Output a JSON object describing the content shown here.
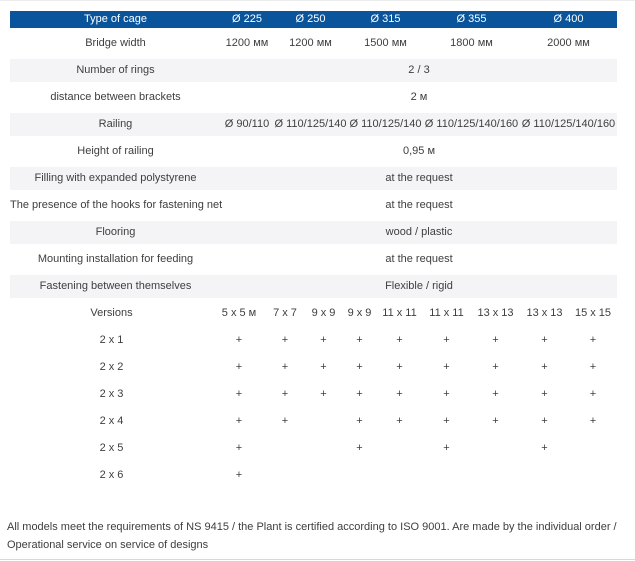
{
  "colors": {
    "header_bg": "#0a549b",
    "header_text": "#ffffff",
    "shade_bg": "#f4f4f6",
    "text": "#3e3e40",
    "divider": "#d8d8d8"
  },
  "table": {
    "header": {
      "label": "Type of cage",
      "values": [
        "Ø 225",
        "Ø 250",
        "Ø 315",
        "Ø 355",
        "Ø 400"
      ]
    },
    "rows": [
      {
        "kind": "cols5",
        "shade": false,
        "label": "Bridge width",
        "values": [
          "1200 мм",
          "1200 мм",
          "1500 мм",
          "1800 мм",
          "2000 мм"
        ]
      },
      {
        "kind": "span",
        "shade": true,
        "label": "Number of rings",
        "value": "2 / 3"
      },
      {
        "kind": "span",
        "shade": false,
        "label": "distance between brackets",
        "value": "2 м"
      },
      {
        "kind": "cols5",
        "shade": true,
        "label": "Railing",
        "values": [
          "Ø 90/110",
          "Ø 110/125/140",
          "Ø 110/125/140",
          "Ø 110/125/140/160",
          "Ø 110/125/140/160"
        ]
      },
      {
        "kind": "span",
        "shade": false,
        "label": "Height of railing",
        "value": "0,95 м"
      },
      {
        "kind": "span",
        "shade": true,
        "label": "Filling with expanded polystyrene",
        "value": "at the request"
      },
      {
        "kind": "span",
        "shade": false,
        "label": "The presence of the hooks for fastening net",
        "value": "at the request"
      },
      {
        "kind": "span",
        "shade": true,
        "label": "Flooring",
        "value": "wood / plastic"
      },
      {
        "kind": "span",
        "shade": false,
        "label": "Mounting installation for feeding",
        "value": "at the request"
      },
      {
        "kind": "span",
        "shade": true,
        "label": "Fastening between themselves",
        "value": "Flexible / rigid"
      },
      {
        "kind": "cols9",
        "shade": false,
        "label": "Versions",
        "values": [
          "5 x 5 м",
          "7 x 7",
          "9 x 9",
          "9 x 9",
          "11 x 11",
          "11 x 11",
          "13 x 13",
          "13 x 13",
          "15 x 15"
        ]
      },
      {
        "kind": "cols9",
        "shade": false,
        "label": "2 x 1",
        "values": [
          "+",
          "+",
          "+",
          "+",
          "+",
          "+",
          "+",
          "+",
          "+"
        ]
      },
      {
        "kind": "cols9",
        "shade": false,
        "label": "2 x 2",
        "values": [
          "+",
          "+",
          "+",
          "+",
          "+",
          "+",
          "+",
          "+",
          "+"
        ]
      },
      {
        "kind": "cols9",
        "shade": false,
        "label": "2 x 3",
        "values": [
          "+",
          "+",
          "+",
          "+",
          "+",
          "+",
          "+",
          "+",
          "+"
        ]
      },
      {
        "kind": "cols9",
        "shade": false,
        "label": "2 x 4",
        "values": [
          "+",
          "+",
          "",
          "+",
          "+",
          "+",
          "+",
          "+",
          "+"
        ]
      },
      {
        "kind": "cols9",
        "shade": false,
        "label": "2 x 5",
        "values": [
          "+",
          "",
          "",
          "+",
          "",
          "+",
          "",
          "+",
          ""
        ]
      },
      {
        "kind": "cols9",
        "shade": false,
        "label": "2 x 6",
        "values": [
          "+",
          "",
          "",
          "",
          "",
          "",
          "",
          "",
          ""
        ]
      }
    ]
  },
  "footnote": "All models meet the requirements of NS 9415 / the Plant is certified according to ISO 9001. Are made by the individual order / Operational service on service of designs"
}
